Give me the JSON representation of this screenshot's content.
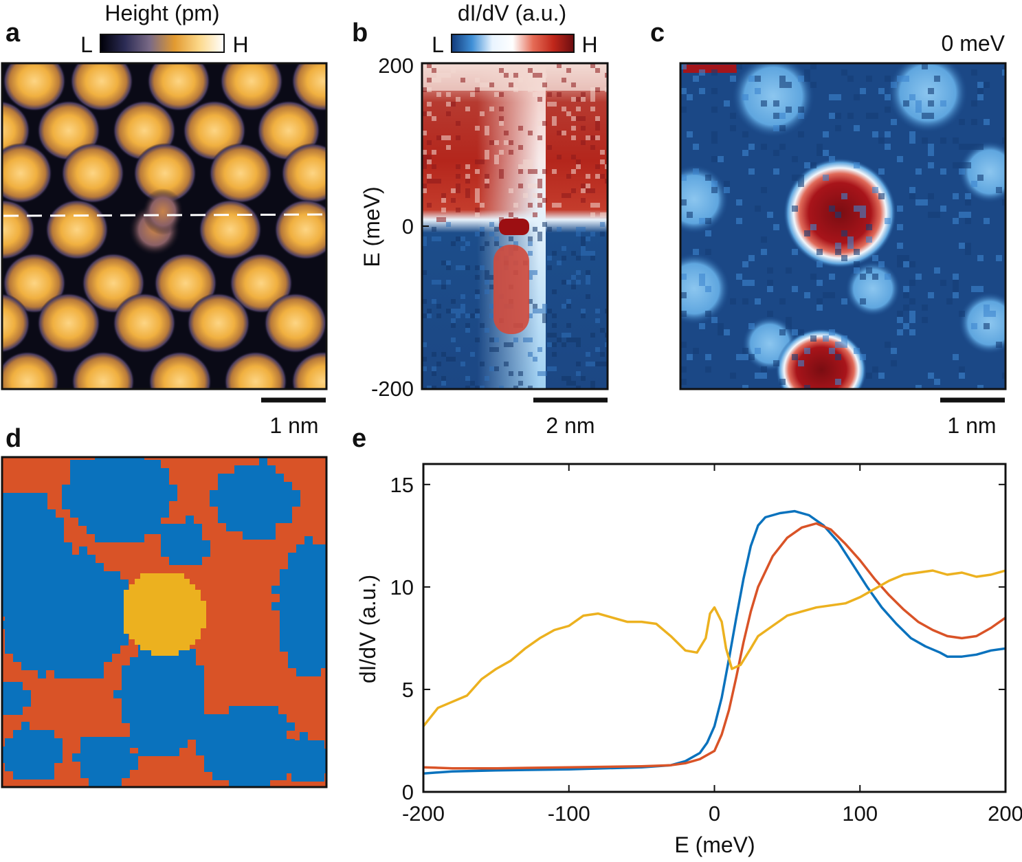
{
  "panels": {
    "a": {
      "label": "a",
      "colorbar": {
        "title": "Height (pm)",
        "low": "L",
        "high": "H",
        "stops": [
          "#000008",
          "#2c2c55",
          "#7a6a86",
          "#e29a30",
          "#fcd88a",
          "#ffffff"
        ]
      },
      "scalebar": "1 nm",
      "linecut": "dashed"
    },
    "b": {
      "label": "b",
      "colorbar": {
        "title": "dI/dV (a.u.)",
        "low": "L",
        "high": "H",
        "stops": [
          "#123a7a",
          "#3f8fd6",
          "#e9f4ff",
          "#ffffff",
          "#e56b55",
          "#c0271b",
          "#6a0d10"
        ]
      },
      "ylabel": "E (meV)",
      "yticks": [
        "200",
        "0",
        "-200"
      ],
      "scalebar": "2 nm"
    },
    "c": {
      "label": "c",
      "energy_label": "0 meV",
      "scalebar": "1 nm"
    },
    "d": {
      "label": "d",
      "cluster_colors": [
        "#0a72bd",
        "#d95327",
        "#ecb11f"
      ]
    },
    "e": {
      "label": "e"
    }
  },
  "chart_data": {
    "type": "line",
    "xlabel": "E (meV)",
    "ylabel": "dI/dV (a.u.)",
    "xlim": [
      -200,
      200
    ],
    "ylim": [
      0,
      16
    ],
    "xticks": [
      -200,
      -100,
      0,
      100,
      200
    ],
    "yticks": [
      0,
      5,
      10,
      15
    ],
    "series": [
      {
        "color": "#0a72bd",
        "points": [
          [
            -200,
            0.9
          ],
          [
            -180,
            1.0
          ],
          [
            -150,
            1.05
          ],
          [
            -100,
            1.1
          ],
          [
            -50,
            1.2
          ],
          [
            -30,
            1.3
          ],
          [
            -20,
            1.5
          ],
          [
            -10,
            1.9
          ],
          [
            -5,
            2.4
          ],
          [
            0,
            3.2
          ],
          [
            5,
            4.6
          ],
          [
            10,
            6.5
          ],
          [
            15,
            8.5
          ],
          [
            20,
            10.4
          ],
          [
            25,
            12.0
          ],
          [
            30,
            13.0
          ],
          [
            35,
            13.4
          ],
          [
            45,
            13.6
          ],
          [
            55,
            13.7
          ],
          [
            65,
            13.5
          ],
          [
            75,
            13.0
          ],
          [
            85,
            12.2
          ],
          [
            95,
            11.1
          ],
          [
            105,
            10.0
          ],
          [
            115,
            9.0
          ],
          [
            125,
            8.2
          ],
          [
            135,
            7.5
          ],
          [
            145,
            7.1
          ],
          [
            155,
            6.8
          ],
          [
            160,
            6.6
          ],
          [
            170,
            6.6
          ],
          [
            180,
            6.7
          ],
          [
            190,
            6.9
          ],
          [
            200,
            7.0
          ]
        ]
      },
      {
        "color": "#d95327",
        "points": [
          [
            -200,
            1.2
          ],
          [
            -180,
            1.15
          ],
          [
            -150,
            1.15
          ],
          [
            -100,
            1.2
          ],
          [
            -50,
            1.25
          ],
          [
            -30,
            1.3
          ],
          [
            -20,
            1.4
          ],
          [
            -10,
            1.6
          ],
          [
            0,
            2.0
          ],
          [
            5,
            2.8
          ],
          [
            10,
            4.0
          ],
          [
            15,
            5.6
          ],
          [
            20,
            7.3
          ],
          [
            25,
            8.8
          ],
          [
            30,
            10.0
          ],
          [
            40,
            11.5
          ],
          [
            50,
            12.4
          ],
          [
            60,
            12.9
          ],
          [
            70,
            13.1
          ],
          [
            80,
            12.8
          ],
          [
            90,
            12.1
          ],
          [
            100,
            11.3
          ],
          [
            110,
            10.4
          ],
          [
            120,
            9.6
          ],
          [
            130,
            8.9
          ],
          [
            140,
            8.3
          ],
          [
            150,
            7.9
          ],
          [
            160,
            7.6
          ],
          [
            170,
            7.5
          ],
          [
            180,
            7.6
          ],
          [
            190,
            8.0
          ],
          [
            200,
            8.5
          ]
        ]
      },
      {
        "color": "#ecb11f",
        "points": [
          [
            -200,
            3.2
          ],
          [
            -190,
            4.1
          ],
          [
            -180,
            4.4
          ],
          [
            -170,
            4.7
          ],
          [
            -160,
            5.5
          ],
          [
            -150,
            6.0
          ],
          [
            -140,
            6.4
          ],
          [
            -130,
            7.0
          ],
          [
            -120,
            7.5
          ],
          [
            -110,
            7.9
          ],
          [
            -100,
            8.1
          ],
          [
            -90,
            8.6
          ],
          [
            -80,
            8.7
          ],
          [
            -70,
            8.5
          ],
          [
            -60,
            8.3
          ],
          [
            -50,
            8.3
          ],
          [
            -40,
            8.2
          ],
          [
            -30,
            7.6
          ],
          [
            -20,
            6.9
          ],
          [
            -12,
            6.8
          ],
          [
            -6,
            7.5
          ],
          [
            -3,
            8.7
          ],
          [
            0,
            9.0
          ],
          [
            5,
            8.3
          ],
          [
            8,
            7.0
          ],
          [
            12,
            6.0
          ],
          [
            18,
            6.2
          ],
          [
            25,
            7.0
          ],
          [
            30,
            7.6
          ],
          [
            40,
            8.1
          ],
          [
            50,
            8.6
          ],
          [
            60,
            8.8
          ],
          [
            70,
            9.0
          ],
          [
            80,
            9.1
          ],
          [
            90,
            9.2
          ],
          [
            100,
            9.5
          ],
          [
            110,
            9.9
          ],
          [
            120,
            10.3
          ],
          [
            130,
            10.6
          ],
          [
            140,
            10.7
          ],
          [
            150,
            10.8
          ],
          [
            160,
            10.6
          ],
          [
            170,
            10.7
          ],
          [
            180,
            10.5
          ],
          [
            190,
            10.6
          ],
          [
            200,
            10.8
          ]
        ]
      }
    ]
  }
}
